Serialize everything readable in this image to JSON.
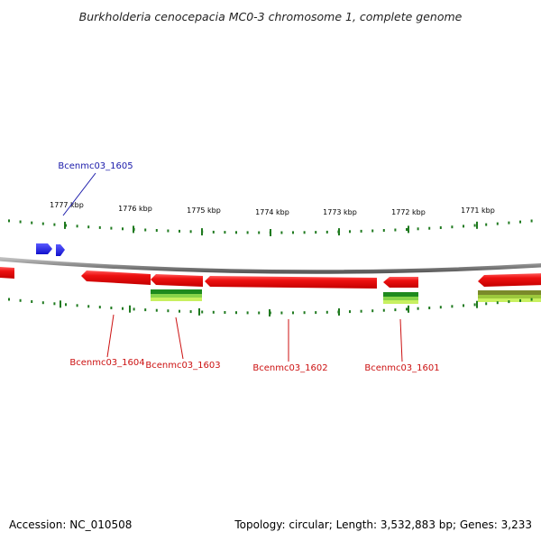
{
  "title": "Burkholderia cenocepacia MC0-3 chromosome 1, complete genome",
  "footer": {
    "accession": "Accession: NC_010508",
    "summary": "Topology: circular; Length: 3,532,883 bp; Genes: 3,233"
  },
  "scale_labels": [
    "1777 kbp",
    "1776 kbp",
    "1775 kbp",
    "1774 kbp",
    "1773 kbp",
    "1772 kbp",
    "1771 kbp"
  ],
  "gene_labels": {
    "g1605": "Bcenmc03_1605",
    "g1604": "Bcenmc03_1604",
    "g1603": "Bcenmc03_1603",
    "g1602": "Bcenmc03_1602",
    "g1601": "Bcenmc03_1601"
  },
  "colors": {
    "forward_gene": "#1a1aee",
    "reverse_gene": "#ee1111",
    "backbone": "#8a8a8a",
    "tick": "#1f7a1f",
    "label_blue": "#1a1aaa",
    "label_red": "#cc1111"
  }
}
